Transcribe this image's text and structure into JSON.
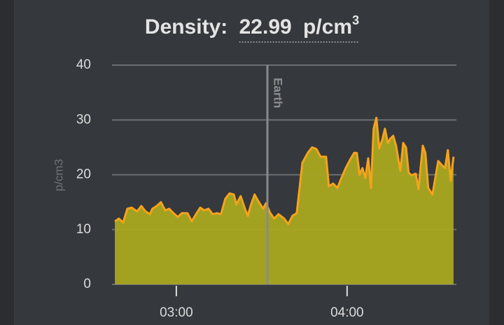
{
  "chart_data": {
    "type": "area",
    "title": "Density:",
    "current_value": 22.99,
    "unit": "p/cm",
    "unit_exponent": "3",
    "y_label": "p/cm3",
    "x": [
      158.4,
      159.8,
      161.3,
      162.8,
      164.3,
      166.2,
      167.7,
      169.2,
      170.7,
      171.6,
      173.1,
      174.6,
      176.1,
      177.5,
      179,
      180.5,
      182,
      183.9,
      185.4,
      186.9,
      188.4,
      189.8,
      191.3,
      192.8,
      194.3,
      195.7,
      197.2,
      198.7,
      200.2,
      201.1,
      202.6,
      204.1,
      205.1,
      206.1,
      207.5,
      209,
      210.5,
      211.5,
      213,
      214.4,
      215.9,
      217.9,
      219.3,
      220.8,
      222.3,
      224.3,
      226.2,
      227.7,
      229.2,
      230.7,
      232.6,
      233.6,
      235.1,
      236.6,
      238,
      239.5,
      241,
      242.5,
      243.4,
      244.4,
      245.4,
      246.4,
      247.4,
      248.4,
      249.3,
      250.3,
      251.3,
      252.3,
      253.3,
      254.3,
      255.2,
      256.2,
      257.2,
      258.7,
      259.7,
      260.7,
      261.6,
      262.6,
      264.1,
      265.1,
      266.6,
      267.5,
      268.5,
      270,
      272,
      273.4,
      274.4,
      275.4,
      276.4,
      277.4
    ],
    "series": [
      {
        "name": "Density",
        "color": "#f5a31c",
        "fill": "#aaa71f",
        "values": [
          11.5,
          12,
          11.3,
          13.8,
          14,
          13.3,
          14.3,
          13.3,
          12.8,
          13.8,
          14.3,
          15,
          13.5,
          13.8,
          13,
          12.3,
          13,
          13,
          11.5,
          12.8,
          14,
          13.5,
          13.8,
          12.8,
          13,
          12.8,
          15.6,
          16.6,
          16.4,
          14.6,
          16.1,
          13.8,
          12.5,
          14.3,
          16.4,
          15,
          13.8,
          14.8,
          13,
          12,
          12.8,
          12,
          11,
          12.5,
          13,
          22.2,
          24,
          25,
          24.7,
          23.3,
          23.3,
          17.9,
          18.4,
          17.6,
          19.4,
          21.2,
          22.7,
          24,
          24,
          20,
          21.2,
          19.4,
          23,
          17.6,
          28.4,
          30.4,
          24.8,
          26.3,
          28.4,
          25.8,
          26.6,
          27.1,
          25.3,
          20.7,
          25.8,
          25,
          20.4,
          19.9,
          20.2,
          17.4,
          25.3,
          24,
          17.6,
          16.4,
          22.5,
          21.7,
          21.2,
          24.5,
          18.9,
          23.3
        ]
      }
    ],
    "xlim": [
      157.4,
      278.4
    ],
    "xticks": [
      {
        "value": 180,
        "label": "03:00"
      },
      {
        "value": 240,
        "label": "04:00"
      }
    ],
    "ylim": [
      0,
      40
    ],
    "yticks": [
      0,
      10,
      20,
      30,
      40
    ],
    "grid": true,
    "annotations": [
      {
        "x": 212,
        "label": "Earth"
      }
    ]
  }
}
